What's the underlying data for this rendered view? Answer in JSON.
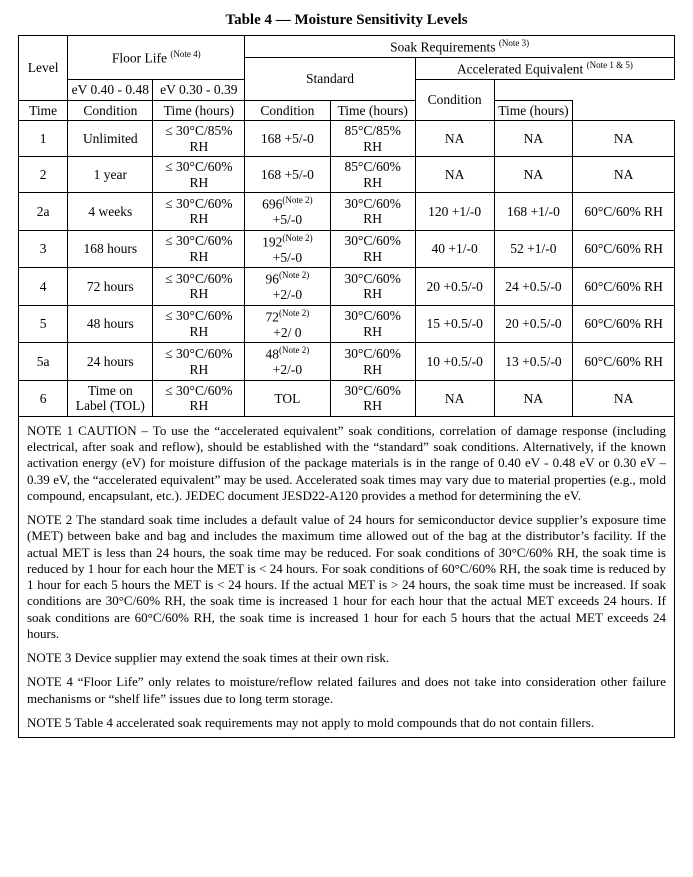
{
  "title": "Table 4 — Moisture Sensitivity Levels",
  "header": {
    "level": "Level",
    "floorlife": "Floor Life ",
    "floorlife_note": "(Note 4)",
    "soak": "Soak Requirements ",
    "soak_note": "(Note 3)",
    "standard": "Standard",
    "accel": "Accelerated Equivalent ",
    "accel_note": "(Note 1 & 5)",
    "ev1": "eV 0.40 - 0.48",
    "ev2": "eV 0.30 - 0.39",
    "time": "Time",
    "condition": "Condition",
    "time_h": "Time (hours)"
  },
  "rows": [
    {
      "level": "1",
      "fl_time": "Unlimited",
      "fl_cond": "≤ 30°C/85% RH",
      "std_time": "168 +5/-0",
      "std_time_note": "",
      "std_cond": "85°C/85% RH",
      "ev1": "NA",
      "ev2": "NA",
      "acc_cond": "NA"
    },
    {
      "level": "2",
      "fl_time": "1 year",
      "fl_cond": "≤ 30°C/60% RH",
      "std_time": "168 +5/-0",
      "std_time_note": "",
      "std_cond": "85°C/60% RH",
      "ev1": "NA",
      "ev2": "NA",
      "acc_cond": "NA"
    },
    {
      "level": "2a",
      "fl_time": "4 weeks",
      "fl_cond": "≤ 30°C/60% RH",
      "std_time_main": "696",
      "std_time_note": "(Note 2)",
      "std_time_tol": "+5/-0",
      "std_cond": "30°C/60% RH",
      "ev1": "120 +1/-0",
      "ev2": "168 +1/-0",
      "acc_cond": "60°C/60% RH"
    },
    {
      "level": "3",
      "fl_time": "168 hours",
      "fl_cond": "≤ 30°C/60% RH",
      "std_time_main": "192",
      "std_time_note": "(Note 2)",
      "std_time_tol": "+5/-0",
      "std_cond": "30°C/60% RH",
      "ev1": "40 +1/-0",
      "ev2": "52 +1/-0",
      "acc_cond": "60°C/60% RH"
    },
    {
      "level": "4",
      "fl_time": "72 hours",
      "fl_cond": "≤ 30°C/60% RH",
      "std_time_main": "96",
      "std_time_note": "(Note 2)",
      "std_time_tol": "+2/-0",
      "std_cond": "30°C/60% RH",
      "ev1": "20 +0.5/-0",
      "ev2": "24 +0.5/-0",
      "acc_cond": "60°C/60% RH"
    },
    {
      "level": "5",
      "fl_time": "48 hours",
      "fl_cond": "≤ 30°C/60% RH",
      "std_time_main": "72",
      "std_time_note": "(Note 2)",
      "std_time_tol": "+2/ 0",
      "std_cond": "30°C/60% RH",
      "ev1": "15 +0.5/-0",
      "ev2": "20 +0.5/-0",
      "acc_cond": "60°C/60% RH"
    },
    {
      "level": "5a",
      "fl_time": "24 hours",
      "fl_cond": "≤ 30°C/60% RH",
      "std_time_main": "48",
      "std_time_note": "(Note 2)",
      "std_time_tol": "+2/-0",
      "std_cond": "30°C/60% RH",
      "ev1": "10 +0.5/-0",
      "ev2": "13 +0.5/-0",
      "acc_cond": "60°C/60% RH"
    },
    {
      "level": "6",
      "fl_time": "Time on Label (TOL)",
      "fl_cond": "≤ 30°C/60% RH",
      "std_time": "TOL",
      "std_time_note": "",
      "std_cond": "30°C/60% RH",
      "ev1": "NA",
      "ev2": "NA",
      "acc_cond": "NA"
    }
  ],
  "notes": {
    "n1": "NOTE 1    CAUTION – To use the “accelerated equivalent” soak conditions, correlation of damage response (including electrical, after soak and reflow), should be established with the “standard” soak conditions. Alternatively, if the known activation energy (eV) for moisture diffusion of the package materials is in the range of 0.40 eV - 0.48 eV or 0.30 eV – 0.39 eV, the “accelerated equivalent” may be used.  Accelerated soak times may vary due to material properties (e.g., mold compound, encapsulant, etc.). JEDEC document JESD22-A120 provides a method for determining the eV.",
    "n2": "NOTE 2   The standard soak time includes a default value of 24 hours for semiconductor device supplier’s exposure time (MET) between bake and bag and includes the maximum time allowed out of the bag at the distributor’s facility.  If the actual MET is less than 24 hours, the soak time may be reduced.  For soak conditions of 30°C/60% RH, the soak time is reduced by 1 hour for each hour the MET is < 24 hours.  For soak conditions of 60°C/60% RH, the soak time is reduced by 1 hour for each 5 hours the MET is < 24 hours.  If the actual MET is > 24 hours, the soak time must be increased.  If soak conditions are 30°C/60% RH, the soak time is increased 1 hour for each hour that the actual MET exceeds 24 hours.  If soak conditions are 60°C/60% RH, the soak time is increased 1 hour for each 5 hours that the actual MET exceeds 24 hours.",
    "n3": "NOTE 3    Device supplier may extend the soak times at their own risk.",
    "n4": "NOTE 4    “Floor Life” only relates to moisture/reflow related failures and does not take into consideration other failure mechanisms or “shelf life” issues due to long term storage.",
    "n5": "NOTE 5    Table 4 accelerated soak requirements may not apply to mold compounds that do not contain fillers."
  }
}
